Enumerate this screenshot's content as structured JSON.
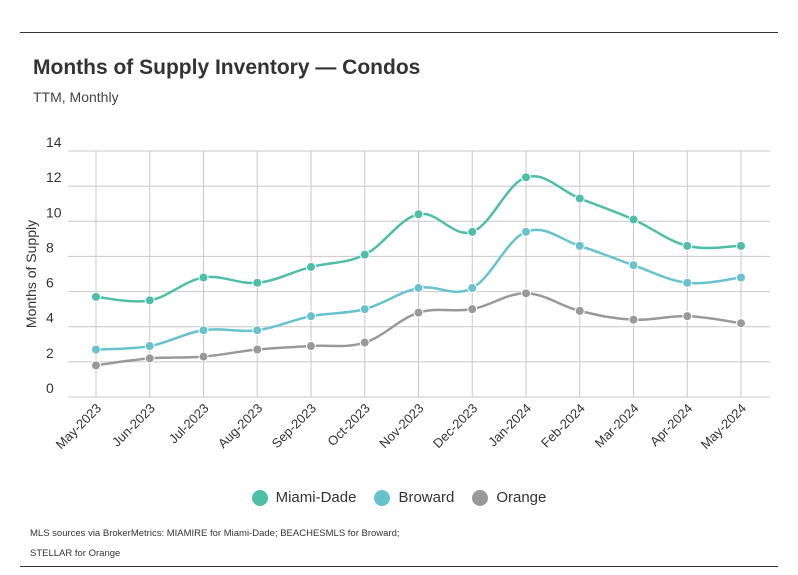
{
  "title": "Months of Supply Inventory — Condos",
  "subtitle": "TTM, Monthly",
  "source": {
    "line1": "MLS sources via BrokerMetrics: MIAMIRE for Miami-Dade; BEACHESMLS for Broward;",
    "line2": "STELLAR for Orange"
  },
  "chart_data": {
    "type": "line",
    "ylabel": "Months of Supply",
    "xlabel": "",
    "ylim": [
      0,
      14
    ],
    "yticks": [
      0,
      2,
      4,
      6,
      8,
      10,
      12,
      14
    ],
    "grid": true,
    "legend_position": "bottom",
    "categories": [
      "May-2023",
      "Jun-2023",
      "Jul-2023",
      "Aug-2023",
      "Sep-2023",
      "Oct-2023",
      "Nov-2023",
      "Dec-2023",
      "Jan-2024",
      "Feb-2024",
      "Mar-2024",
      "Apr-2024",
      "May-2024"
    ],
    "series": [
      {
        "name": "Miami-Dade",
        "color": "#4dbfa6",
        "values": [
          5.7,
          5.5,
          6.8,
          6.5,
          7.4,
          8.1,
          10.4,
          9.4,
          12.5,
          11.3,
          10.1,
          8.6,
          8.6
        ]
      },
      {
        "name": "Broward",
        "color": "#66c2cf",
        "values": [
          2.7,
          2.9,
          3.8,
          3.8,
          4.6,
          5.0,
          6.2,
          6.2,
          9.4,
          8.6,
          7.5,
          6.5,
          6.8
        ]
      },
      {
        "name": "Orange",
        "color": "#999999",
        "values": [
          1.8,
          2.2,
          2.3,
          2.7,
          2.9,
          3.1,
          4.8,
          5.0,
          5.9,
          4.9,
          4.4,
          4.6,
          4.2
        ]
      }
    ]
  }
}
